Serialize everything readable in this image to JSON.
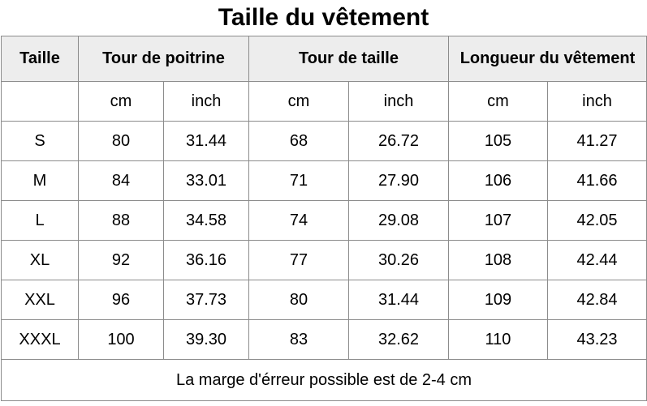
{
  "title": "Taille du vêtement",
  "headers": {
    "size": "Taille",
    "chest": "Tour de poitrine",
    "waist": "Tour de taille",
    "length": "Longueur du vêtement"
  },
  "units": [
    "cm",
    "inch",
    "cm",
    "inch",
    "cm",
    "inch"
  ],
  "rows": [
    [
      "S",
      "80",
      "31.44",
      "68",
      "26.72",
      "105",
      "41.27"
    ],
    [
      "M",
      "84",
      "33.01",
      "71",
      "27.90",
      "106",
      "41.66"
    ],
    [
      "L",
      "88",
      "34.58",
      "74",
      "29.08",
      "107",
      "42.05"
    ],
    [
      "XL",
      "92",
      "36.16",
      "77",
      "30.26",
      "108",
      "42.44"
    ],
    [
      "XXL",
      "96",
      "37.73",
      "80",
      "31.44",
      "109",
      "42.84"
    ],
    [
      "XXXL",
      "100",
      "39.30",
      "83",
      "32.62",
      "110",
      "43.23"
    ]
  ],
  "footer_note": "La marge d'érreur possible est de 2-4 cm"
}
